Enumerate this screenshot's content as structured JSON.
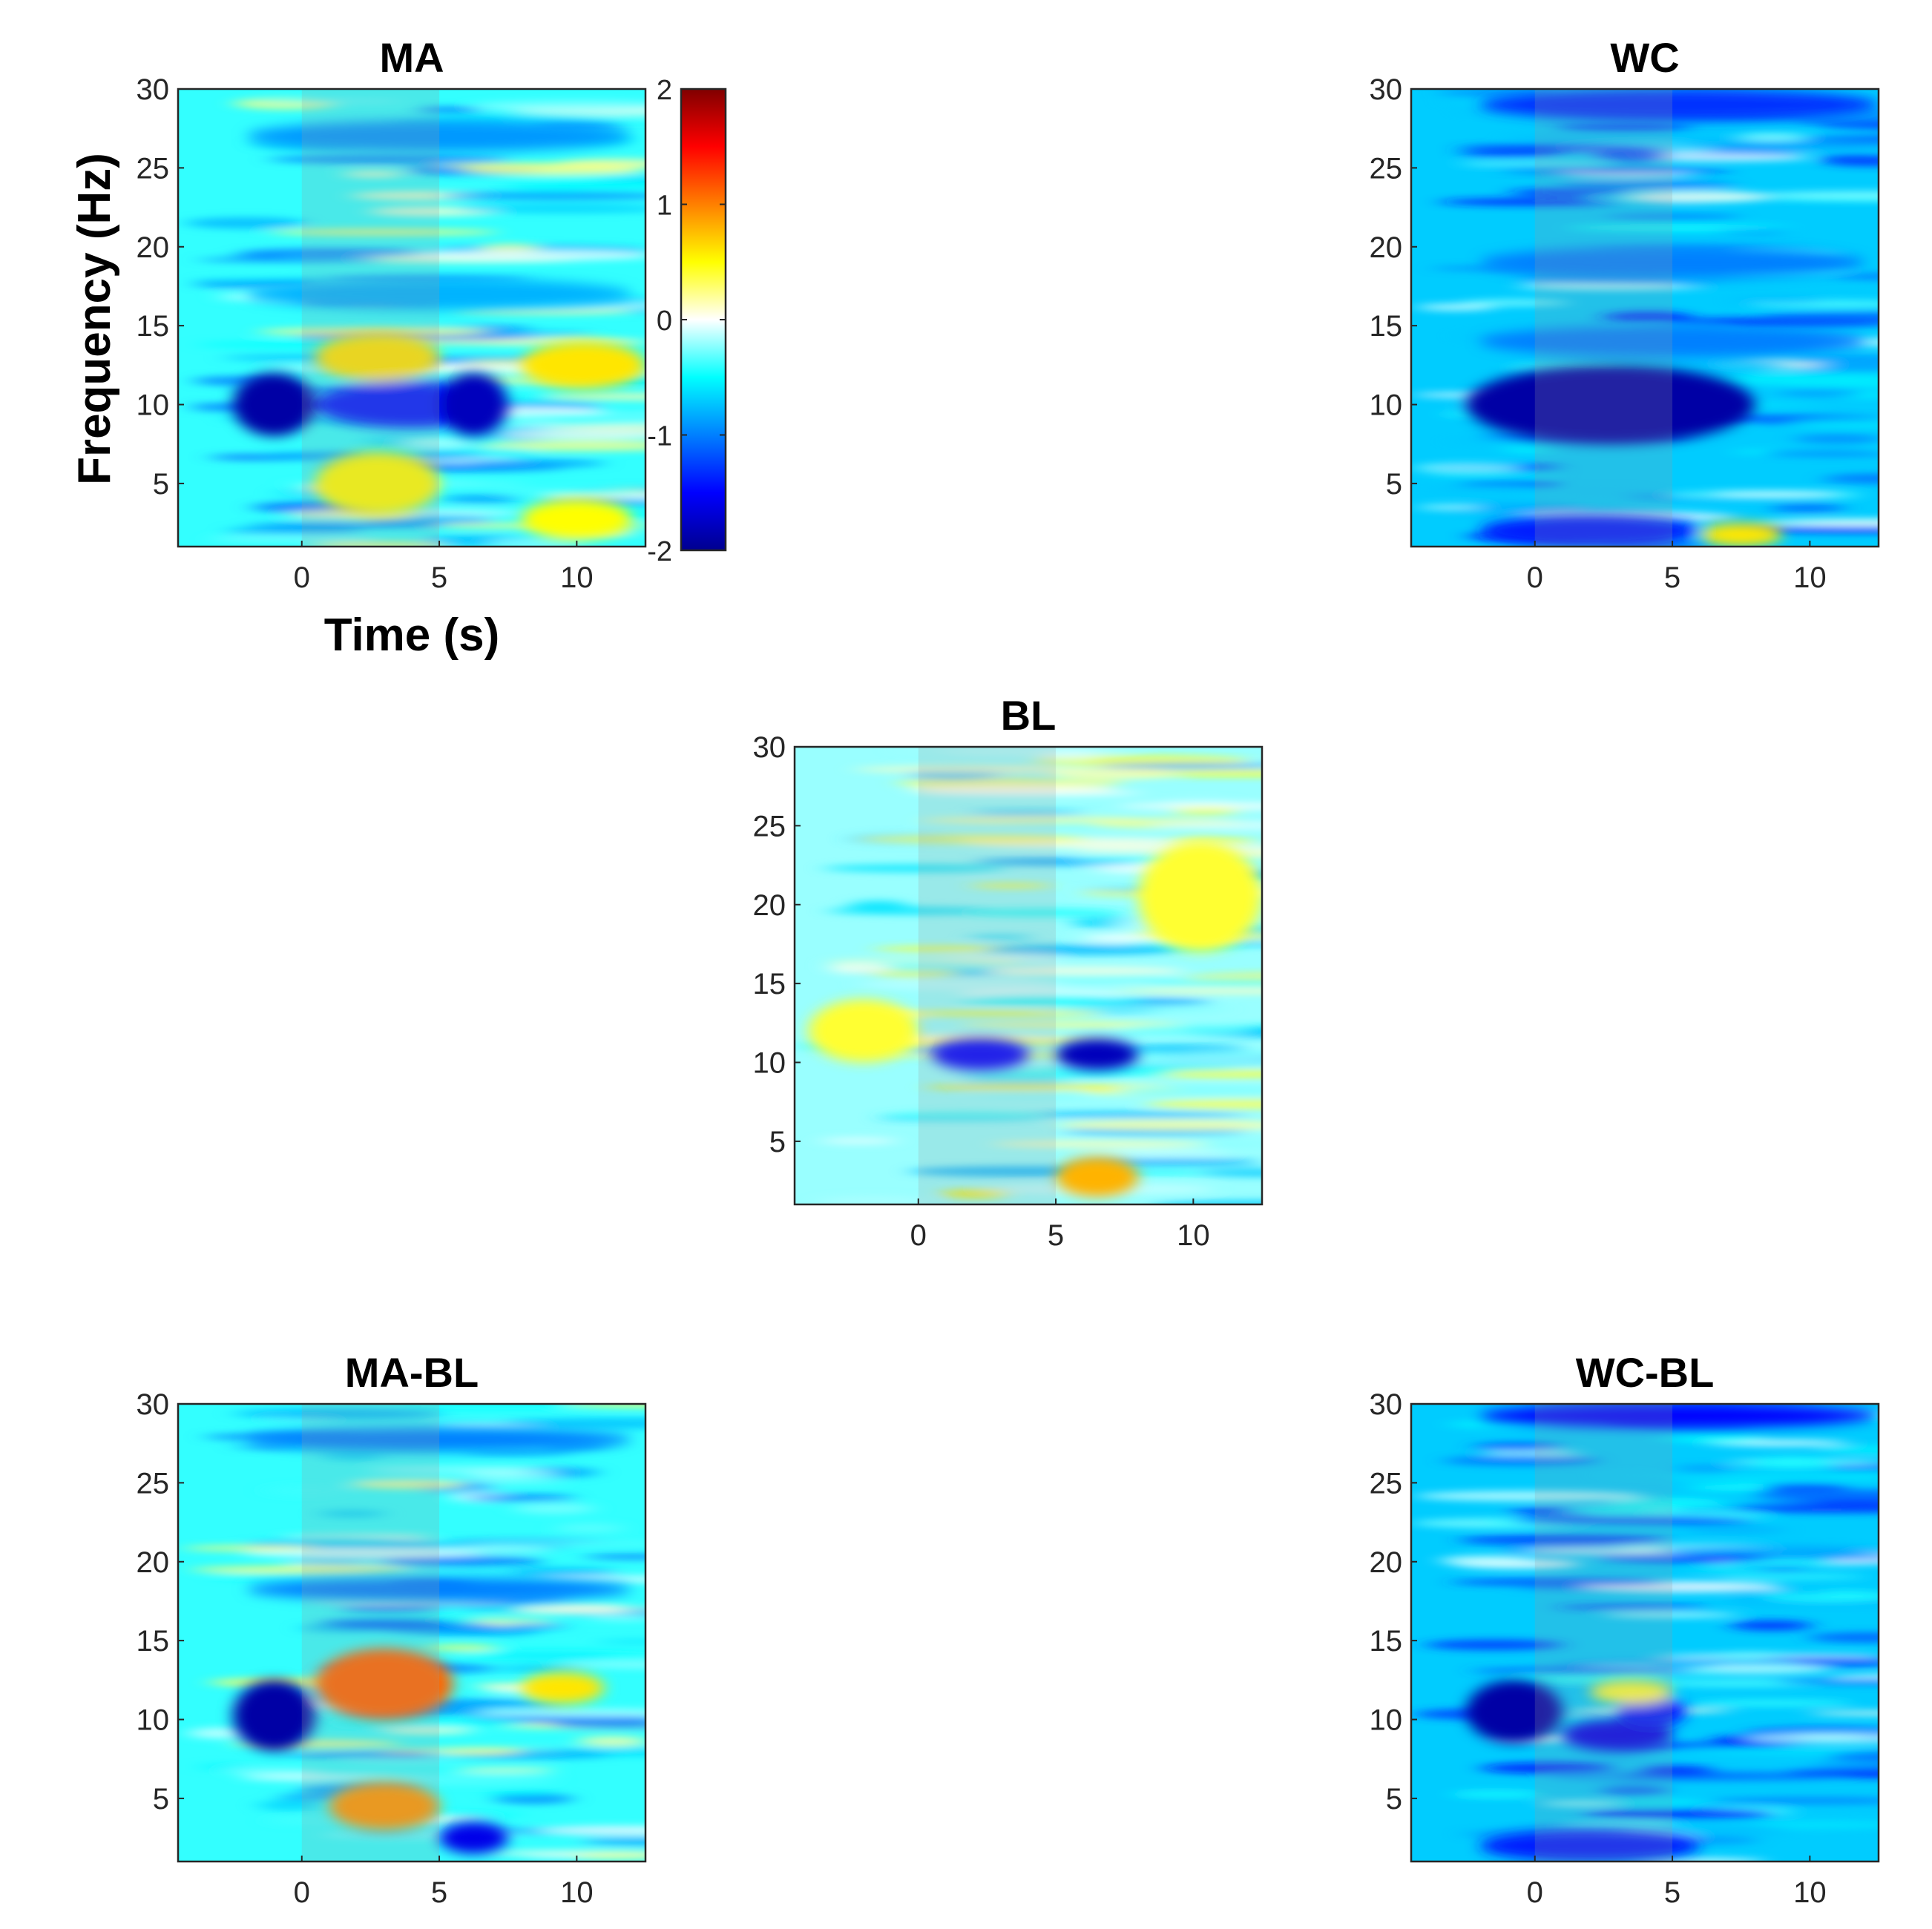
{
  "figure": {
    "colorbar": {
      "colormap": "jet",
      "ticks": [
        "2",
        "1",
        "0",
        "-1",
        "-2"
      ],
      "tick_values": [
        2,
        1,
        0,
        -1,
        -2
      ],
      "range": [
        -2,
        2
      ]
    },
    "xlabel": "Time (s)",
    "ylabel": "Frequency (Hz)",
    "stimulus_window": [
      0,
      5
    ]
  },
  "chart_data": [
    {
      "type": "heatmap",
      "title": "MA",
      "xlabel": "Time (s)",
      "ylabel": "Frequency (Hz)",
      "xlim": [
        -4.5,
        12.5
      ],
      "ylim": [
        1,
        30
      ],
      "xticks": [
        "0",
        "5",
        "10"
      ],
      "xtick_values": [
        0,
        5,
        10
      ],
      "yticks": [
        "5",
        "10",
        "15",
        "20",
        "25",
        "30"
      ],
      "ytick_values": [
        5,
        10,
        15,
        20,
        25,
        30
      ],
      "clim": [
        -2,
        2
      ],
      "base_value": -0.4,
      "features": [
        {
          "t": [
            -2.5,
            0.5
          ],
          "f": [
            8,
            12
          ],
          "value": -1.9
        },
        {
          "t": [
            0.5,
            7.5
          ],
          "f": [
            8.5,
            11.5
          ],
          "value": -1.4
        },
        {
          "t": [
            5,
            7.5
          ],
          "f": [
            8,
            12
          ],
          "value": -1.8
        },
        {
          "t": [
            0.5,
            5
          ],
          "f": [
            11.5,
            14.5
          ],
          "value": 0.6
        },
        {
          "t": [
            0.5,
            5
          ],
          "f": [
            3,
            7
          ],
          "value": 0.5
        },
        {
          "t": [
            8,
            12.5
          ],
          "f": [
            11,
            14
          ],
          "value": 0.6
        },
        {
          "t": [
            8,
            12
          ],
          "f": [
            1.5,
            4
          ],
          "value": 0.5
        },
        {
          "t": [
            -2,
            12
          ],
          "f": [
            26,
            28
          ],
          "value": -0.9
        },
        {
          "t": [
            -2,
            12
          ],
          "f": [
            16,
            18
          ],
          "value": -0.8
        }
      ]
    },
    {
      "type": "heatmap",
      "title": "WC",
      "xlim": [
        -4.5,
        12.5
      ],
      "ylim": [
        1,
        30
      ],
      "xticks": [
        "0",
        "5",
        "10"
      ],
      "xtick_values": [
        0,
        5,
        10
      ],
      "yticks": [
        "5",
        "10",
        "15",
        "20",
        "25",
        "30"
      ],
      "ytick_values": [
        5,
        10,
        15,
        20,
        25,
        30
      ],
      "clim": [
        -2,
        2
      ],
      "base_value": -0.7,
      "features": [
        {
          "t": [
            -2.5,
            8
          ],
          "f": [
            7.5,
            12.5
          ],
          "value": -1.9
        },
        {
          "t": [
            -2,
            6
          ],
          "f": [
            1,
            3
          ],
          "value": -1.4
        },
        {
          "t": [
            -2,
            12.5
          ],
          "f": [
            28,
            30
          ],
          "value": -1.3
        },
        {
          "t": [
            -2,
            12
          ],
          "f": [
            13,
            15
          ],
          "value": -1.0
        },
        {
          "t": [
            -2,
            12
          ],
          "f": [
            18,
            20
          ],
          "value": -1.0
        },
        {
          "t": [
            6,
            9
          ],
          "f": [
            1,
            2.5
          ],
          "value": 0.6
        }
      ]
    },
    {
      "type": "heatmap",
      "title": "BL",
      "xlim": [
        -4.5,
        12.5
      ],
      "ylim": [
        1,
        30
      ],
      "xticks": [
        "0",
        "5",
        "10"
      ],
      "xtick_values": [
        0,
        5,
        10
      ],
      "yticks": [
        "5",
        "10",
        "15",
        "20",
        "25",
        "30"
      ],
      "ytick_values": [
        5,
        10,
        15,
        20,
        25,
        30
      ],
      "clim": [
        -2,
        2
      ],
      "base_value": -0.2,
      "features": [
        {
          "t": [
            0.5,
            4
          ],
          "f": [
            9.5,
            11.5
          ],
          "value": -1.5
        },
        {
          "t": [
            5,
            8
          ],
          "f": [
            9.5,
            11.5
          ],
          "value": -1.8
        },
        {
          "t": [
            5,
            8
          ],
          "f": [
            1.5,
            4
          ],
          "value": 0.8
        },
        {
          "t": [
            8,
            12.5
          ],
          "f": [
            17,
            24
          ],
          "value": 0.4
        },
        {
          "t": [
            -4,
            0
          ],
          "f": [
            10,
            14
          ],
          "value": 0.4
        }
      ]
    },
    {
      "type": "heatmap",
      "title": "MA-BL",
      "xlim": [
        -4.5,
        12.5
      ],
      "ylim": [
        1,
        30
      ],
      "xticks": [
        "0",
        "5",
        "10"
      ],
      "xtick_values": [
        0,
        5,
        10
      ],
      "yticks": [
        "5",
        "10",
        "15",
        "20",
        "25",
        "30"
      ],
      "ytick_values": [
        5,
        10,
        15,
        20,
        25,
        30
      ],
      "clim": [
        -2,
        2
      ],
      "base_value": -0.4,
      "features": [
        {
          "t": [
            -2.5,
            0.5
          ],
          "f": [
            8,
            12.5
          ],
          "value": -1.9
        },
        {
          "t": [
            0.5,
            5.5
          ],
          "f": [
            10,
            14.5
          ],
          "value": 1.1
        },
        {
          "t": [
            1,
            5
          ],
          "f": [
            3,
            6
          ],
          "value": 0.9
        },
        {
          "t": [
            5,
            7.5
          ],
          "f": [
            1.5,
            3.5
          ],
          "value": -1.6
        },
        {
          "t": [
            8,
            11
          ],
          "f": [
            11,
            13
          ],
          "value": 0.6
        },
        {
          "t": [
            -2,
            12
          ],
          "f": [
            27,
            28.5
          ],
          "value": -1.0
        },
        {
          "t": [
            -2,
            12
          ],
          "f": [
            17.5,
            19
          ],
          "value": -1.0
        }
      ]
    },
    {
      "type": "heatmap",
      "title": "WC-BL",
      "xlim": [
        -4.5,
        12.5
      ],
      "ylim": [
        1,
        30
      ],
      "xticks": [
        "0",
        "5",
        "10"
      ],
      "xtick_values": [
        0,
        5,
        10
      ],
      "yticks": [
        "5",
        "10",
        "15",
        "20",
        "25",
        "30"
      ],
      "ytick_values": [
        5,
        10,
        15,
        20,
        25,
        30
      ],
      "clim": [
        -2,
        2
      ],
      "base_value": -0.7,
      "features": [
        {
          "t": [
            -2.5,
            1
          ],
          "f": [
            8.5,
            12.5
          ],
          "value": -1.9
        },
        {
          "t": [
            1,
            5
          ],
          "f": [
            8,
            10
          ],
          "value": -1.6
        },
        {
          "t": [
            3,
            5.5
          ],
          "f": [
            9.5,
            11.5
          ],
          "value": -1.4
        },
        {
          "t": [
            -2,
            12.5
          ],
          "f": [
            28.5,
            30
          ],
          "value": -1.5
        },
        {
          "t": [
            -2,
            6
          ],
          "f": [
            1,
            3
          ],
          "value": -1.4
        },
        {
          "t": [
            2,
            5
          ],
          "f": [
            11,
            12.5
          ],
          "value": 0.4
        }
      ]
    }
  ]
}
